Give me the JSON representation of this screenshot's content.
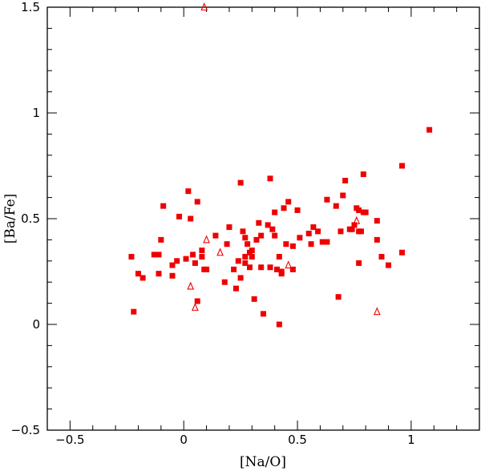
{
  "chart_data": {
    "type": "scatter",
    "xlabel": "[Na/O]",
    "ylabel": "[Ba/Fe]",
    "xlim": [
      -0.6,
      1.3
    ],
    "ylim": [
      -0.5,
      1.5
    ],
    "x_ticks": [
      {
        "value": -0.5,
        "label": "−0.5"
      },
      {
        "value": 0,
        "label": "0"
      },
      {
        "value": 0.5,
        "label": "0.5"
      },
      {
        "value": 1,
        "label": "1"
      }
    ],
    "y_ticks": [
      {
        "value": -0.5,
        "label": "−0.5"
      },
      {
        "value": 0,
        "label": "0"
      },
      {
        "value": 0.5,
        "label": "0.5"
      },
      {
        "value": 1,
        "label": "1"
      },
      {
        "value": 1.5,
        "label": "1.5"
      }
    ],
    "minor_step": 0.1,
    "grid": false,
    "marker_color": "#ee0000",
    "series": [
      {
        "marker": "filled-square",
        "points": [
          [
            -0.23,
            0.32
          ],
          [
            -0.22,
            0.06
          ],
          [
            -0.2,
            0.24
          ],
          [
            -0.18,
            0.22
          ],
          [
            -0.13,
            0.33
          ],
          [
            -0.11,
            0.33
          ],
          [
            -0.11,
            0.24
          ],
          [
            -0.1,
            0.4
          ],
          [
            -0.09,
            0.56
          ],
          [
            -0.05,
            0.28
          ],
          [
            -0.05,
            0.23
          ],
          [
            -0.03,
            0.3
          ],
          [
            -0.02,
            0.51
          ],
          [
            0.01,
            0.31
          ],
          [
            0.02,
            0.63
          ],
          [
            0.03,
            0.5
          ],
          [
            0.04,
            0.33
          ],
          [
            0.05,
            0.29
          ],
          [
            0.06,
            0.58
          ],
          [
            0.06,
            0.11
          ],
          [
            0.08,
            0.35
          ],
          [
            0.08,
            0.32
          ],
          [
            0.09,
            0.26
          ],
          [
            0.1,
            0.26
          ],
          [
            0.14,
            0.42
          ],
          [
            0.18,
            0.2
          ],
          [
            0.19,
            0.38
          ],
          [
            0.2,
            0.46
          ],
          [
            0.22,
            0.26
          ],
          [
            0.23,
            0.17
          ],
          [
            0.24,
            0.3
          ],
          [
            0.25,
            0.67
          ],
          [
            0.25,
            0.22
          ],
          [
            0.26,
            0.44
          ],
          [
            0.27,
            0.41
          ],
          [
            0.27,
            0.32
          ],
          [
            0.27,
            0.29
          ],
          [
            0.28,
            0.38
          ],
          [
            0.29,
            0.34
          ],
          [
            0.29,
            0.27
          ],
          [
            0.3,
            0.32
          ],
          [
            0.3,
            0.35
          ],
          [
            0.31,
            0.12
          ],
          [
            0.32,
            0.4
          ],
          [
            0.33,
            0.48
          ],
          [
            0.34,
            0.42
          ],
          [
            0.34,
            0.27
          ],
          [
            0.35,
            0.05
          ],
          [
            0.37,
            0.47
          ],
          [
            0.38,
            0.69
          ],
          [
            0.38,
            0.27
          ],
          [
            0.39,
            0.45
          ],
          [
            0.4,
            0.53
          ],
          [
            0.4,
            0.42
          ],
          [
            0.41,
            0.26
          ],
          [
            0.42,
            0.0
          ],
          [
            0.42,
            0.32
          ],
          [
            0.43,
            0.24
          ],
          [
            0.43,
            0.25
          ],
          [
            0.44,
            0.55
          ],
          [
            0.45,
            0.38
          ],
          [
            0.46,
            0.58
          ],
          [
            0.48,
            0.37
          ],
          [
            0.48,
            0.26
          ],
          [
            0.5,
            0.54
          ],
          [
            0.51,
            0.41
          ],
          [
            0.55,
            0.43
          ],
          [
            0.56,
            0.38
          ],
          [
            0.57,
            0.46
          ],
          [
            0.59,
            0.44
          ],
          [
            0.61,
            0.39
          ],
          [
            0.63,
            0.39
          ],
          [
            0.63,
            0.59
          ],
          [
            0.67,
            0.56
          ],
          [
            0.68,
            0.13
          ],
          [
            0.69,
            0.44
          ],
          [
            0.7,
            0.61
          ],
          [
            0.71,
            0.68
          ],
          [
            0.73,
            0.45
          ],
          [
            0.74,
            0.45
          ],
          [
            0.75,
            0.47
          ],
          [
            0.76,
            0.55
          ],
          [
            0.77,
            0.54
          ],
          [
            0.77,
            0.44
          ],
          [
            0.77,
            0.29
          ],
          [
            0.78,
            0.44
          ],
          [
            0.79,
            0.53
          ],
          [
            0.79,
            0.71
          ],
          [
            0.8,
            0.53
          ],
          [
            0.85,
            0.49
          ],
          [
            0.85,
            0.4
          ],
          [
            0.87,
            0.32
          ],
          [
            0.9,
            0.28
          ],
          [
            0.96,
            0.75
          ],
          [
            0.96,
            0.34
          ],
          [
            1.08,
            0.92
          ]
        ]
      },
      {
        "marker": "open-triangle",
        "points": [
          [
            0.09,
            1.5
          ],
          [
            0.1,
            0.4
          ],
          [
            0.16,
            0.34
          ],
          [
            0.03,
            0.18
          ],
          [
            0.05,
            0.08
          ],
          [
            0.46,
            0.28
          ],
          [
            0.76,
            0.49
          ],
          [
            0.85,
            0.06
          ]
        ]
      }
    ]
  }
}
